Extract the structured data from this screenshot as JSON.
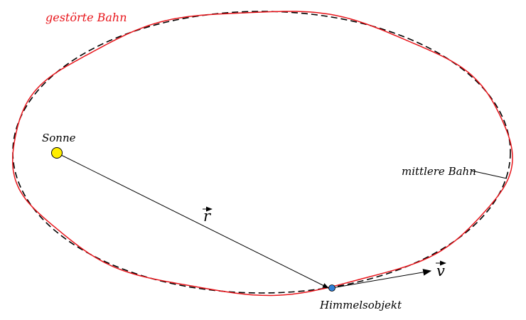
{
  "labels": {
    "perturbed_orbit": "gestörte Bahn",
    "mean_orbit": "mittlere Bahn",
    "sun": "Sonne",
    "body": "Himmelsobjekt",
    "position_vector": "r",
    "velocity_vector": "v"
  },
  "colors": {
    "perturbed_orbit": "#e8151b",
    "mean_orbit": "#000000",
    "sun_fill": "#ffee00",
    "body_fill": "#2f7fd6",
    "vectors": "#000000"
  }
}
